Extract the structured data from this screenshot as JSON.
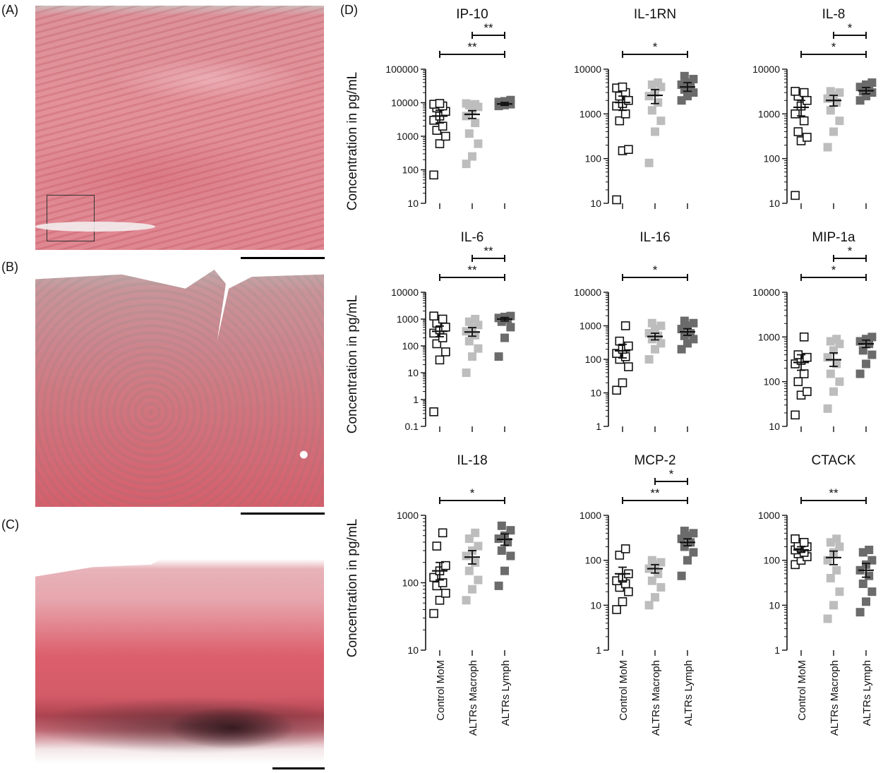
{
  "panels": {
    "a": "(A)",
    "b": "(B)",
    "c": "(C)",
    "d": "(D)"
  },
  "colors": {
    "stain_pink": "#e58a95",
    "stain_red": "#c8414f",
    "control": "#111111",
    "macroph": "#bdbdbd",
    "lymph": "#6b6b6b"
  },
  "ylabel": "Concentration in pg/mL",
  "groups": [
    "Control MoM",
    "ALTRs Macroph",
    "ALTRs Lymph"
  ],
  "chart_data": [
    {
      "type": "scatter",
      "title": "IP-10",
      "scale": "log",
      "ylim": [
        10,
        100000
      ],
      "ticks": [
        "10",
        "100",
        "1000",
        "10000",
        "100000"
      ],
      "mean": [
        4000,
        4500,
        9200
      ],
      "sem": [
        [
          2500,
          6000
        ],
        [
          3400,
          5800
        ],
        [
          8300,
          10200
        ]
      ],
      "points": [
        [
          70,
          600,
          1000,
          1500,
          2000,
          3000,
          4000,
          5500,
          7000,
          8000,
          9000,
          9500
        ],
        [
          150,
          250,
          600,
          1200,
          2500,
          4000,
          6000,
          7500,
          8500,
          9000,
          9500
        ],
        [
          8000,
          8500,
          9000,
          9500,
          10000,
          10500,
          11000,
          12000
        ]
      ],
      "brackets": [
        {
          "from": 1,
          "to": 2,
          "label": "**"
        },
        {
          "from": 0,
          "to": 2,
          "label": "**"
        }
      ]
    },
    {
      "type": "scatter",
      "title": "IL-1RN",
      "scale": "log",
      "ylim": [
        10,
        10000
      ],
      "ticks": [
        "10",
        "100",
        "1000",
        "10000"
      ],
      "mean": [
        1800,
        2600,
        4000
      ],
      "sem": [
        [
          1200,
          2500
        ],
        [
          1700,
          3500
        ],
        [
          3200,
          5000
        ]
      ],
      "points": [
        [
          12,
          150,
          160,
          700,
          1000,
          1500,
          1700,
          2000,
          2500,
          3000,
          3800,
          4000
        ],
        [
          80,
          400,
          700,
          1200,
          1800,
          2500,
          3000,
          4000,
          4500,
          5000
        ],
        [
          2000,
          2500,
          3000,
          3500,
          4000,
          4500,
          5000,
          6000,
          7000
        ]
      ],
      "brackets": [
        {
          "from": 0,
          "to": 2,
          "label": "*"
        }
      ]
    },
    {
      "type": "scatter",
      "title": "IL-8",
      "scale": "log",
      "ylim": [
        10,
        10000
      ],
      "ticks": [
        "10",
        "100",
        "1000",
        "10000"
      ],
      "mean": [
        1400,
        2000,
        3300
      ],
      "sem": [
        [
          900,
          2000
        ],
        [
          1500,
          2600
        ],
        [
          2800,
          3900
        ]
      ],
      "points": [
        [
          15,
          250,
          300,
          400,
          700,
          1000,
          1500,
          2000,
          2500,
          3000,
          3200
        ],
        [
          180,
          400,
          700,
          1200,
          1800,
          2200,
          2500,
          3000,
          3200
        ],
        [
          2000,
          2500,
          3000,
          3200,
          3500,
          4000,
          4500,
          5000
        ]
      ],
      "brackets": [
        {
          "from": 1,
          "to": 2,
          "label": "*"
        },
        {
          "from": 0,
          "to": 2,
          "label": "*"
        }
      ]
    },
    {
      "type": "scatter",
      "title": "IL-6",
      "scale": "log",
      "ylim": [
        0.1,
        10000
      ],
      "ticks": [
        "0.1",
        "1",
        "10",
        "100",
        "1000",
        "10000"
      ],
      "mean": [
        350,
        330,
        1000
      ],
      "sem": [
        [
          220,
          550
        ],
        [
          230,
          480
        ],
        [
          850,
          1150
        ]
      ],
      "points": [
        [
          0.35,
          30,
          60,
          120,
          200,
          300,
          400,
          500,
          700,
          1000,
          1300
        ],
        [
          10,
          40,
          80,
          150,
          250,
          350,
          450,
          600,
          800,
          1000
        ],
        [
          40,
          200,
          500,
          800,
          1000,
          1100,
          1200,
          1300
        ]
      ],
      "brackets": [
        {
          "from": 1,
          "to": 2,
          "label": "**"
        },
        {
          "from": 0,
          "to": 2,
          "label": "**"
        }
      ]
    },
    {
      "type": "scatter",
      "title": "IL-16",
      "scale": "log",
      "ylim": [
        1,
        10000
      ],
      "ticks": [
        "1",
        "10",
        "100",
        "1000",
        "10000"
      ],
      "mean": [
        180,
        480,
        660
      ],
      "sem": [
        [
          110,
          280
        ],
        [
          380,
          600
        ],
        [
          520,
          820
        ]
      ],
      "points": [
        [
          12,
          20,
          60,
          100,
          120,
          150,
          200,
          250,
          350,
          1000
        ],
        [
          100,
          200,
          300,
          400,
          500,
          600,
          800,
          1000,
          1200
        ],
        [
          200,
          300,
          400,
          500,
          600,
          800,
          1000,
          1200,
          1400
        ]
      ],
      "brackets": [
        {
          "from": 0,
          "to": 2,
          "label": "*"
        }
      ]
    },
    {
      "type": "scatter",
      "title": "MIP-1a",
      "scale": "log",
      "ylim": [
        10,
        10000
      ],
      "ticks": [
        "10",
        "100",
        "1000",
        "10000"
      ],
      "mean": [
        270,
        310,
        700
      ],
      "sem": [
        [
          180,
          400
        ],
        [
          220,
          440
        ],
        [
          580,
          850
        ]
      ],
      "points": [
        [
          18,
          50,
          60,
          100,
          150,
          250,
          300,
          350,
          400,
          1000
        ],
        [
          25,
          60,
          100,
          150,
          250,
          350,
          500,
          700,
          800,
          900
        ],
        [
          150,
          250,
          400,
          500,
          700,
          800,
          900,
          1000
        ]
      ],
      "brackets": [
        {
          "from": 1,
          "to": 2,
          "label": "*"
        },
        {
          "from": 0,
          "to": 2,
          "label": "*"
        }
      ]
    },
    {
      "type": "scatter",
      "title": "IL-18",
      "scale": "log",
      "ylim": [
        10,
        1000
      ],
      "ticks": [
        "10",
        "100",
        "1000"
      ],
      "mean": [
        150,
        240,
        440
      ],
      "sem": [
        [
          110,
          200
        ],
        [
          190,
          300
        ],
        [
          360,
          530
        ]
      ],
      "points": [
        [
          35,
          55,
          70,
          90,
          100,
          120,
          150,
          180,
          350,
          550
        ],
        [
          55,
          80,
          110,
          150,
          200,
          250,
          300,
          350,
          450,
          550
        ],
        [
          90,
          150,
          250,
          300,
          400,
          450,
          500,
          600,
          700
        ]
      ],
      "brackets": [
        {
          "from": 0,
          "to": 2,
          "label": "*"
        }
      ]
    },
    {
      "type": "scatter",
      "title": "MCP-2",
      "scale": "log",
      "ylim": [
        1,
        1000
      ],
      "ticks": [
        "1",
        "10",
        "100",
        "1000"
      ],
      "mean": [
        50,
        65,
        250
      ],
      "sem": [
        [
          35,
          70
        ],
        [
          52,
          80
        ],
        [
          210,
          300
        ]
      ],
      "points": [
        [
          8,
          12,
          20,
          25,
          30,
          35,
          40,
          50,
          130,
          180
        ],
        [
          10,
          15,
          25,
          35,
          50,
          65,
          80,
          90,
          100
        ],
        [
          45,
          100,
          150,
          200,
          250,
          300,
          350,
          400,
          450
        ]
      ],
      "brackets": [
        {
          "from": 1,
          "to": 2,
          "label": "*"
        },
        {
          "from": 0,
          "to": 2,
          "label": "**"
        }
      ]
    },
    {
      "type": "scatter",
      "title": "CTACK",
      "scale": "log",
      "ylim": [
        1,
        1000
      ],
      "ticks": [
        "1",
        "10",
        "100",
        "1000"
      ],
      "mean": [
        170,
        115,
        60
      ],
      "sem": [
        [
          150,
          200
        ],
        [
          80,
          160
        ],
        [
          42,
          85
        ]
      ],
      "points": [
        [
          80,
          100,
          120,
          140,
          150,
          170,
          190,
          200,
          220,
          250,
          300
        ],
        [
          5,
          10,
          20,
          40,
          60,
          100,
          150,
          200,
          250,
          300
        ],
        [
          7,
          12,
          20,
          30,
          45,
          60,
          80,
          100,
          150,
          170
        ]
      ],
      "brackets": [
        {
          "from": 0,
          "to": 2,
          "label": "**"
        }
      ]
    }
  ]
}
